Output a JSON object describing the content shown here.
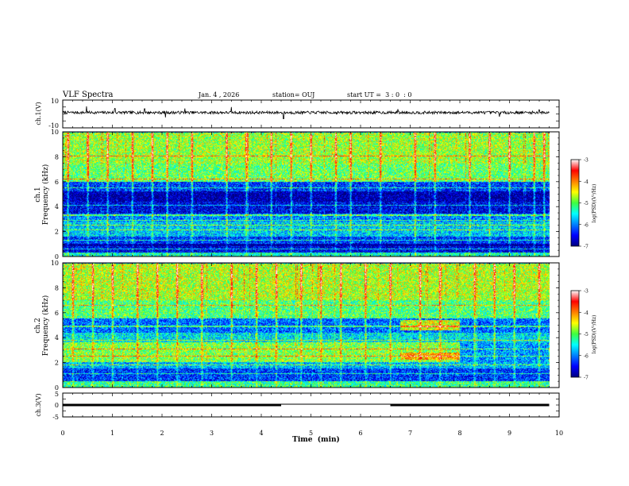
{
  "header": {
    "title": "VLF Spectra",
    "date": "Jan. 4 , 2026",
    "station": "station= OUJ",
    "start_ut": "start UT =  3 : 0  : 0"
  },
  "x_axis": {
    "label": "Time  (min)",
    "range": [
      0,
      10
    ],
    "ticks": [
      "0",
      "1",
      "2",
      "3",
      "4",
      "5",
      "6",
      "7",
      "8",
      "9",
      "10"
    ]
  },
  "colorbar": {
    "range": [
      -7,
      -3
    ],
    "ticks": [
      "-3",
      "-4",
      "-5",
      "-6",
      "-7"
    ],
    "label": "log(PSD)(V²/Hz)"
  },
  "chart_data": [
    {
      "type": "line",
      "name": "ch1-waveform",
      "ylabel": "ch.1(V)",
      "ylim": [
        -10,
        10
      ],
      "yticks": [
        "10",
        "-10"
      ],
      "x": [
        0,
        10
      ],
      "baseline": 1.0,
      "noise_amplitude": 1.0,
      "spikes": [
        [
          0.48,
          4.5
        ],
        [
          1.05,
          3.0
        ],
        [
          1.65,
          2.8
        ],
        [
          2.07,
          -3.5
        ],
        [
          2.46,
          3.0
        ],
        [
          3.4,
          4.0
        ],
        [
          4.45,
          -4.5
        ],
        [
          6.75,
          2.5
        ],
        [
          8.8,
          -3.0
        ],
        [
          9.6,
          2.0
        ]
      ],
      "data_end_min": 9.8
    },
    {
      "type": "heatmap",
      "name": "ch1-spectrogram",
      "ylabel": "ch.1\nFrequency  (kHz)",
      "x_range_min": [
        0,
        9.8
      ],
      "y_range_khz": [
        0,
        10
      ],
      "yticks": [
        "0",
        "2",
        "4",
        "6",
        "8",
        "10"
      ],
      "bands": [
        {
          "f": [
            0.0,
            0.3
          ],
          "level": -5.4
        },
        {
          "f": [
            0.3,
            0.8
          ],
          "level": -6.6
        },
        {
          "f": [
            0.8,
            1.0
          ],
          "level": -7.0
        },
        {
          "f": [
            1.0,
            1.6
          ],
          "level": -6.3
        },
        {
          "f": [
            1.6,
            2.8
          ],
          "level": -5.7
        },
        {
          "f": [
            2.8,
            3.4
          ],
          "level": -6.0
        },
        {
          "f": [
            3.4,
            4.4
          ],
          "level": -6.6
        },
        {
          "f": [
            4.4,
            5.2
          ],
          "level": -6.9
        },
        {
          "f": [
            5.2,
            6.0
          ],
          "level": -6.3
        },
        {
          "f": [
            6.0,
            7.5
          ],
          "level": -5.0
        },
        {
          "f": [
            7.5,
            10.0
          ],
          "level": -4.8
        }
      ],
      "lines_khz": [
        0.6,
        1.3,
        2.1,
        2.5,
        2.9,
        3.3,
        4.1,
        5.5,
        6.2,
        8.1
      ],
      "bursts_min": [
        0.1,
        0.5,
        0.9,
        1.4,
        1.8,
        2.1,
        2.6,
        3.3,
        3.7,
        4.2,
        4.6,
        5.0,
        5.5,
        5.8,
        6.4,
        7.1,
        7.5,
        8.2,
        8.6,
        9.0,
        9.5,
        9.7
      ],
      "noise_seed": 11
    },
    {
      "type": "heatmap",
      "name": "ch2-spectrogram",
      "ylabel": "ch.2\nFrequency  (kHz)",
      "x_range_min": [
        0,
        9.8
      ],
      "y_range_khz": [
        0,
        10
      ],
      "yticks": [
        "0",
        "2",
        "4",
        "6",
        "8",
        "10"
      ],
      "bands": [
        {
          "f": [
            0.0,
            0.5
          ],
          "level": -5.2
        },
        {
          "f": [
            0.5,
            1.5
          ],
          "level": -6.3
        },
        {
          "f": [
            1.5,
            2.0
          ],
          "level": -5.8
        },
        {
          "f": [
            2.0,
            3.6
          ],
          "level": -4.9
        },
        {
          "f": [
            3.6,
            4.4
          ],
          "level": -5.6
        },
        {
          "f": [
            4.4,
            5.6
          ],
          "level": -6.1
        },
        {
          "f": [
            5.6,
            7.0
          ],
          "level": -5.1
        },
        {
          "f": [
            7.0,
            10.0
          ],
          "level": -4.7
        }
      ],
      "patches": [
        {
          "t": [
            6.8,
            8.0
          ],
          "f": [
            4.6,
            5.4
          ],
          "level": -4.6
        },
        {
          "t": [
            6.8,
            8.0
          ],
          "f": [
            2.2,
            2.8
          ],
          "level": -4.2
        },
        {
          "t": [
            8.0,
            9.8
          ],
          "f": [
            2.0,
            3.6
          ],
          "level": -5.9
        }
      ],
      "lines_khz": [
        1.1,
        1.8,
        2.5,
        3.1,
        3.8,
        4.9,
        5.6,
        6.6
      ],
      "bursts_min": [
        0.2,
        0.6,
        1.0,
        1.5,
        1.9,
        2.3,
        2.8,
        3.4,
        3.9,
        4.3,
        4.8,
        5.2,
        5.6,
        6.1,
        6.6,
        7.2,
        7.6,
        8.3,
        8.7,
        9.1,
        9.6
      ],
      "noise_seed": 29
    },
    {
      "type": "line",
      "name": "ch3-status",
      "ylabel": "ch.3(V)",
      "ylim": [
        -5,
        5
      ],
      "yticks": [
        "5",
        "0",
        "-5"
      ],
      "segments": [
        {
          "x": [
            0,
            4.4
          ],
          "y": 0.0
        },
        {
          "x": [
            4.4,
            6.6
          ],
          "y": 0.35
        },
        {
          "x": [
            6.6,
            9.8
          ],
          "y": 0.0
        }
      ]
    }
  ]
}
